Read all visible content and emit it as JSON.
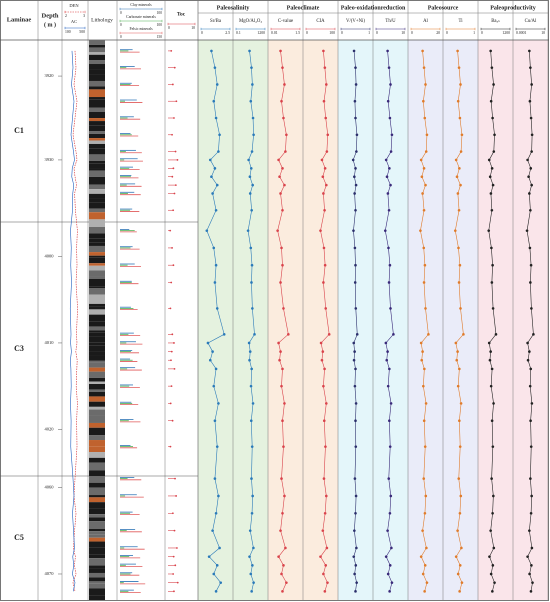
{
  "chart_data": {
    "type": "log",
    "headers": {
      "laminae": "Laminae",
      "depth": "Depth",
      "depth_unit": "( m )",
      "lithology": "Lithology"
    },
    "sections": [
      {
        "name": "C1",
        "ylim": [
          3915.7,
          3937.4
        ],
        "yticks": [
          3920,
          3930
        ]
      },
      {
        "name": "C3",
        "ylim": [
          3996,
          4025.4
        ],
        "yticks": [
          4000,
          4010,
          4020
        ]
      },
      {
        "name": "C5",
        "ylim": [
          4058.7,
          4073
        ],
        "yticks": [
          4060,
          4070
        ]
      }
    ],
    "depth": [
      3917,
      3919,
      3921,
      3923,
      3925,
      3927,
      3929,
      3930,
      3931,
      3932,
      3933,
      3934,
      3936,
      3997,
      3999,
      4001,
      4003,
      4006,
      4009,
      4010,
      4011,
      4012,
      4013,
      4015,
      4017,
      4019,
      4022,
      4059,
      4061,
      4063,
      4065,
      4067,
      4068,
      4069,
      4070,
      4071,
      4072
    ],
    "logs": [
      {
        "name": "DEN",
        "xlim": [
          2,
          3
        ],
        "xticks": [
          2,
          3
        ],
        "color": "#d62728",
        "dash": true,
        "values": [
          2.5,
          2.55,
          2.45,
          2.6,
          2.5,
          2.4,
          2.55,
          2.6,
          2.45,
          2.5,
          2.58,
          2.48,
          2.52,
          2.62,
          2.58,
          2.6,
          2.55,
          2.63,
          2.57,
          2.6,
          2.54,
          2.61,
          2.59,
          2.56,
          2.62,
          2.58,
          2.6,
          2.5,
          2.45,
          2.55,
          2.48,
          2.42,
          2.52,
          2.47,
          2.55,
          2.4,
          2.5
        ]
      },
      {
        "name": "AC",
        "xlim": [
          100,
          500
        ],
        "xticks": [
          100,
          500
        ],
        "color": "#1f5fbf",
        "dash": false,
        "values": [
          240,
          260,
          230,
          280,
          250,
          220,
          270,
          290,
          245,
          235,
          275,
          255,
          250,
          210,
          225,
          215,
          230,
          205,
          220,
          212,
          228,
          208,
          218,
          224,
          210,
          222,
          215,
          260,
          280,
          250,
          270,
          290,
          255,
          275,
          248,
          300,
          265
        ]
      }
    ],
    "minerals": [
      {
        "name": "Clay minerals",
        "xlim": [
          0,
          100
        ],
        "xticks": [
          0,
          100
        ],
        "color": "#2e75b6",
        "values": [
          30,
          35,
          28,
          40,
          33,
          25,
          38,
          42,
          31,
          27,
          36,
          34,
          29,
          22,
          30,
          35,
          28,
          26,
          33,
          38,
          29,
          24,
          36,
          31,
          27,
          32,
          25,
          34,
          40,
          30,
          36,
          42,
          31,
          38,
          29,
          44,
          33
        ]
      },
      {
        "name": "Carbonate minerals",
        "xlim": [
          0,
          100
        ],
        "xticks": [
          0,
          100
        ],
        "color": "#4caf50",
        "values": [
          20,
          15,
          25,
          12,
          18,
          28,
          14,
          10,
          22,
          26,
          16,
          19,
          24,
          35,
          25,
          18,
          28,
          32,
          20,
          15,
          26,
          30,
          17,
          22,
          29,
          21,
          31,
          18,
          12,
          24,
          16,
          10,
          22,
          14,
          25,
          9,
          20
        ]
      },
      {
        "name": "Felsic minerals",
        "xlim": [
          0,
          150
        ],
        "xticks": [
          0,
          150
        ],
        "color": "#e05a5a",
        "values": [
          70,
          75,
          68,
          80,
          72,
          65,
          78,
          82,
          70,
          66,
          77,
          74,
          69,
          60,
          70,
          75,
          66,
          63,
          72,
          80,
          68,
          62,
          78,
          71,
          65,
          73,
          61,
          76,
          85,
          70,
          78,
          88,
          72,
          80,
          69,
          90,
          74
        ]
      }
    ],
    "toc": {
      "name": "Toc",
      "xlim": [
        0,
        10
      ],
      "xticks": [
        0,
        10
      ],
      "color": "#d9434b",
      "values": [
        1.2,
        2.5,
        1.8,
        3.1,
        2.2,
        1.5,
        2.8,
        3.5,
        2.0,
        1.6,
        2.9,
        2.4,
        1.9,
        0.8,
        1.5,
        2.0,
        1.2,
        0.9,
        1.6,
        2.2,
        1.4,
        1.1,
        2.4,
        1.3,
        1.0,
        1.7,
        0.9,
        2.6,
        3.0,
        1.8,
        2.4,
        3.3,
        2.1,
        2.7,
        1.9,
        3.6,
        2.2
      ]
    },
    "groups": [
      {
        "title": "Paleosalinity",
        "color": "#cfe8c4",
        "panels": [
          {
            "name": "Sr/Ba",
            "xlim": [
              0,
              2.5
            ],
            "xticks": [
              0,
              2.5
            ],
            "log": false,
            "color": "#2a7ab9",
            "values": [
              0.9,
              1.2,
              1.4,
              1.1,
              1.3,
              1.6,
              1.5,
              0.8,
              1.2,
              0.9,
              1.4,
              1.0,
              1.3,
              0.5,
              1.1,
              1.3,
              1.2,
              1.4,
              2.0,
              0.6,
              1.0,
              0.8,
              1.3,
              1.1,
              1.5,
              1.2,
              1.4,
              1.2,
              1.5,
              1.3,
              1.0,
              1.6,
              0.7,
              1.4,
              1.1,
              1.7,
              1.3
            ]
          },
          {
            "name": "MgO/Al₂O₃",
            "xlim": [
              0.1,
              1200
            ],
            "xticks": [
              0.1,
              1200
            ],
            "log": true,
            "color": "#2a7ab9",
            "values": [
              8,
              15,
              20,
              12,
              25,
              30,
              18,
              6,
              14,
              9,
              22,
              10,
              16,
              5,
              12,
              18,
              15,
              20,
              40,
              7,
              10,
              8,
              16,
              13,
              25,
              14,
              19,
              15,
              22,
              18,
              10,
              28,
              8,
              20,
              12,
              30,
              16
            ]
          }
        ]
      },
      {
        "title": "Paleoclimate",
        "color": "#f8dcc2",
        "panels": [
          {
            "name": "C-value",
            "xlim": [
              0.01,
              1.5
            ],
            "xticks": [
              0.01,
              1.5
            ],
            "log": false,
            "color": "#d9434b",
            "values": [
              0.5,
              0.6,
              0.7,
              0.55,
              0.65,
              0.8,
              0.75,
              0.4,
              0.6,
              0.45,
              0.7,
              0.5,
              0.6,
              0.35,
              0.55,
              0.6,
              0.5,
              0.65,
              0.9,
              0.4,
              0.5,
              0.45,
              0.6,
              0.55,
              0.7,
              0.6,
              0.65,
              0.55,
              0.7,
              0.6,
              0.5,
              0.75,
              0.4,
              0.65,
              0.55,
              0.8,
              0.6
            ]
          },
          {
            "name": "CIA",
            "xlim": [
              0,
              100
            ],
            "xticks": [
              0,
              100
            ],
            "log": false,
            "color": "#d9434b",
            "values": [
              60,
              65,
              70,
              62,
              68,
              75,
              72,
              55,
              66,
              58,
              70,
              60,
              64,
              50,
              62,
              66,
              60,
              68,
              80,
              52,
              58,
              55,
              64,
              60,
              70,
              63,
              67,
              62,
              70,
              66,
              58,
              72,
              50,
              68,
              60,
              74,
              65
            ]
          }
        ]
      },
      {
        "title": "Paleo-oxidationreduction",
        "color": "#cdeef6",
        "panels": [
          {
            "name": "V/(V+Ni)",
            "xlim": [
              0,
              1
            ],
            "xticks": [
              0,
              1
            ],
            "log": false,
            "color": "#2b2f6b",
            "values": [
              0.45,
              0.5,
              0.52,
              0.48,
              0.5,
              0.55,
              0.53,
              0.42,
              0.5,
              0.46,
              0.52,
              0.47,
              0.5,
              0.43,
              0.48,
              0.5,
              0.49,
              0.51,
              0.56,
              0.44,
              0.47,
              0.45,
              0.5,
              0.48,
              0.52,
              0.5,
              0.51,
              0.48,
              0.52,
              0.5,
              0.46,
              0.53,
              0.44,
              0.51,
              0.47,
              0.54,
              0.5
            ]
          },
          {
            "name": "Th/U",
            "xlim": [
              0,
              10
            ],
            "xticks": [
              0,
              10
            ],
            "log": false,
            "color": "#3a2a7a",
            "values": [
              4,
              4.5,
              5,
              4.2,
              4.8,
              5.5,
              5.2,
              3.5,
              4.6,
              3.8,
              5,
              4.1,
              4.5,
              3.2,
              4.3,
              4.8,
              4.5,
              5,
              6,
              3.4,
              4,
              3.7,
              4.6,
              4.2,
              5.2,
              4.6,
              4.9,
              4.4,
              5.1,
              4.8,
              4,
              5.3,
              3.5,
              4.9,
              4.2,
              5.5,
              4.7
            ]
          }
        ]
      },
      {
        "title": "Paleosource",
        "color": "#d8dcf4",
        "panels": [
          {
            "name": "Al",
            "xlim": [
              0,
              20
            ],
            "xticks": [
              0,
              20
            ],
            "log": false,
            "color": "#e07b2a",
            "values": [
              8,
              9,
              10,
              8.5,
              9.5,
              11,
              10.5,
              7,
              9,
              7.5,
              10,
              8,
              9,
              6.5,
              8.8,
              9.6,
              9,
              10,
              12,
              7,
              8,
              7.4,
              9.2,
              8.5,
              10.4,
              9.1,
              9.8,
              8.8,
              10.2,
              9.6,
              8,
              10.6,
              7,
              9.8,
              8.4,
              11,
              9.4
            ]
          },
          {
            "name": "Ti",
            "xlim": [
              0,
              1
            ],
            "xticks": [
              0,
              1
            ],
            "log": false,
            "color": "#e07b2a",
            "values": [
              0.4,
              0.45,
              0.5,
              0.42,
              0.48,
              0.55,
              0.52,
              0.35,
              0.46,
              0.38,
              0.5,
              0.41,
              0.45,
              0.32,
              0.43,
              0.48,
              0.45,
              0.5,
              0.6,
              0.34,
              0.4,
              0.37,
              0.46,
              0.42,
              0.52,
              0.46,
              0.49,
              0.44,
              0.51,
              0.48,
              0.4,
              0.53,
              0.35,
              0.49,
              0.42,
              0.55,
              0.47
            ]
          }
        ]
      },
      {
        "title": "Paleoproductivity",
        "color": "#f6d0d8",
        "panels": [
          {
            "name": "Baₓₛ",
            "xlim": [
              0,
              1200
            ],
            "xticks": [
              0,
              1200
            ],
            "log": false,
            "color": "#222222",
            "values": [
              400,
              450,
              520,
              420,
              480,
              560,
              530,
              340,
              460,
              380,
              500,
              410,
              450,
              320,
              430,
              480,
              450,
              500,
              620,
              340,
              400,
              370,
              460,
              420,
              520,
              460,
              490,
              440,
              510,
              480,
              400,
              530,
              350,
              490,
              420,
              560,
              470
            ]
          },
          {
            "name": "Cu/Al",
            "xlim": [
              0.0001,
              10
            ],
            "xticks": [
              0.0001,
              10
            ],
            "log": true,
            "color": "#222222",
            "values": [
              0.02,
              0.03,
              0.05,
              0.025,
              0.04,
              0.06,
              0.05,
              0.01,
              0.035,
              0.015,
              0.05,
              0.02,
              0.03,
              0.008,
              0.025,
              0.04,
              0.03,
              0.045,
              0.1,
              0.01,
              0.02,
              0.012,
              0.035,
              0.028,
              0.055,
              0.033,
              0.042,
              0.03,
              0.05,
              0.04,
              0.02,
              0.055,
              0.01,
              0.045,
              0.022,
              0.07,
              0.038
            ]
          }
        ]
      }
    ]
  }
}
